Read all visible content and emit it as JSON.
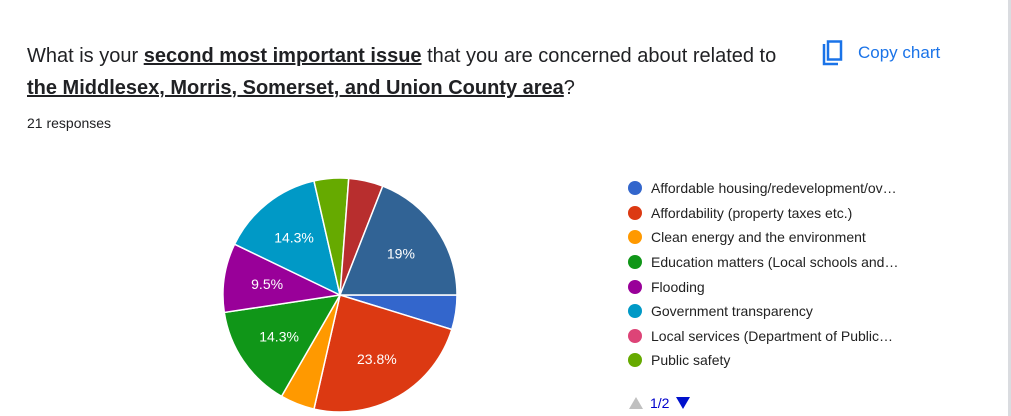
{
  "question": {
    "p1": "What is your ",
    "b1": "second most important issue",
    "p2": " that you are concerned about related to ",
    "b2": "the Middlesex, Morris, Somerset, and Union County area",
    "p3": "?"
  },
  "responses": "21 responses",
  "copy_chart": {
    "label": "Copy chart",
    "icon": "copy-icon"
  },
  "pager": {
    "label": "1/2",
    "prev_icon": "triangle-up-icon",
    "next_icon": "triangle-down-icon"
  },
  "chart_data": {
    "type": "pie",
    "total_responses": 21,
    "slices": [
      {
        "name": "Affordable housing/redevelopment/ov…",
        "count": 1,
        "label": "",
        "color": "#3366cc"
      },
      {
        "name": "Affordability (property taxes etc.)",
        "count": 5,
        "label": "23.8%",
        "color": "#dc3912"
      },
      {
        "name": "Clean energy and the environment",
        "count": 1,
        "label": "",
        "color": "#ff9900"
      },
      {
        "name": "Education matters (Local schools and…",
        "count": 3,
        "label": "14.3%",
        "color": "#109618"
      },
      {
        "name": "Flooding",
        "count": 2,
        "label": "9.5%",
        "color": "#990099"
      },
      {
        "name": "Government transparency",
        "count": 3,
        "label": "14.3%",
        "color": "#0099c6"
      },
      {
        "name": "Local services (Department of Public…",
        "count": 0,
        "label": "",
        "color": "#dd4477"
      },
      {
        "name": "Public safety",
        "count": 1,
        "label": "",
        "color": "#66aa00"
      },
      {
        "name": "",
        "count": 1,
        "label": "",
        "color": "#b82e2e"
      },
      {
        "name": "",
        "count": 4,
        "label": "19%",
        "color": "#316395"
      }
    ],
    "legend_position": "right"
  }
}
